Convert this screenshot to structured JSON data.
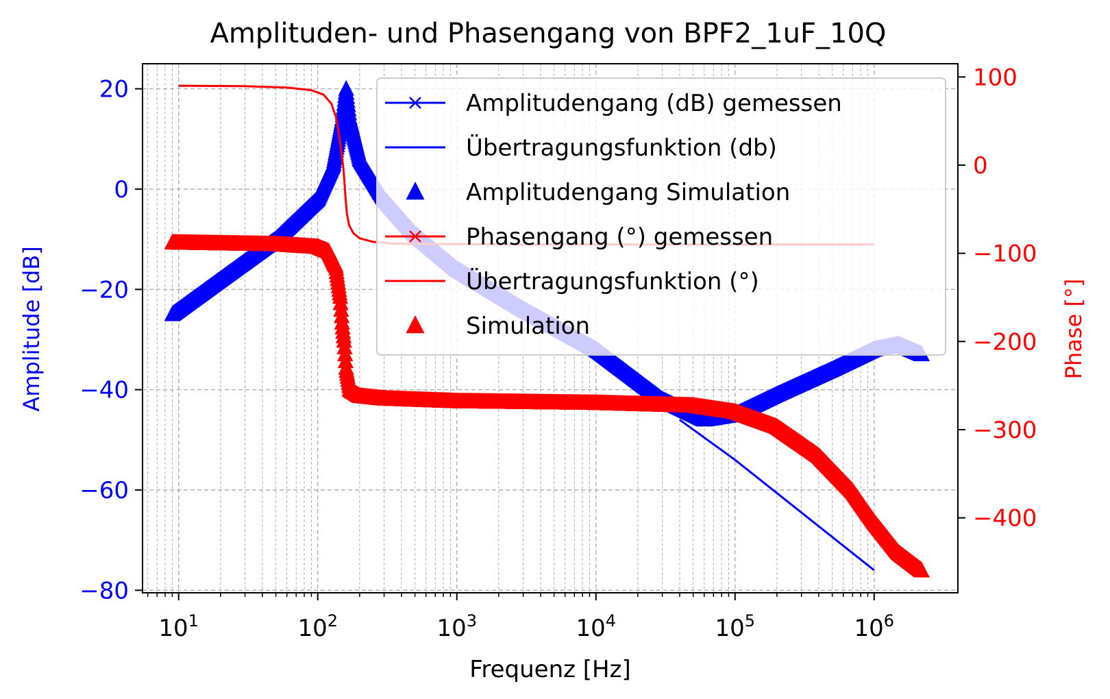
{
  "chart_data": {
    "type": "line",
    "title": "Amplituden- und Phasengang von BPF2_1uF_10Q",
    "xlabel": "Frequenz [Hz]",
    "ylabel_left": "Amplitude [dB]",
    "ylabel_right": "Phase [°]",
    "x_scale": "log",
    "xlim": [
      5.5,
      4000000
    ],
    "ylim_left": [
      -80.5,
      25
    ],
    "ylim_right": [
      -485,
      115
    ],
    "grid": true,
    "legend_position": "top-right",
    "colors": {
      "amplitude": "#0000ff",
      "phase": "#ff0000",
      "left_axis": "#0000ff",
      "right_axis": "#ff0000"
    },
    "x_ticks": [
      {
        "value": 10,
        "base": "10",
        "exp": "1"
      },
      {
        "value": 100,
        "base": "10",
        "exp": "2"
      },
      {
        "value": 1000,
        "base": "10",
        "exp": "3"
      },
      {
        "value": 10000,
        "base": "10",
        "exp": "4"
      },
      {
        "value": 100000,
        "base": "10",
        "exp": "5"
      },
      {
        "value": 1000000,
        "base": "10",
        "exp": "6"
      }
    ],
    "y_ticks_left": [
      {
        "value": 20,
        "label": "20"
      },
      {
        "value": 0,
        "label": "0"
      },
      {
        "value": -20,
        "label": "−20"
      },
      {
        "value": -40,
        "label": "−40"
      },
      {
        "value": -60,
        "label": "−60"
      },
      {
        "value": -80,
        "label": "−80"
      }
    ],
    "y_ticks_right": [
      {
        "value": 100,
        "label": "100"
      },
      {
        "value": 0,
        "label": "0"
      },
      {
        "value": -100,
        "label": "−100"
      },
      {
        "value": -200,
        "label": "−200"
      },
      {
        "value": -300,
        "label": "−300"
      },
      {
        "value": -400,
        "label": "−400"
      }
    ],
    "legend": [
      {
        "label": "Amplitudengang (dB) gemessen",
        "color": "#0000ff",
        "style": "line-x"
      },
      {
        "label": "Übertragungsfunktion (db)",
        "color": "#0000ff",
        "style": "line"
      },
      {
        "label": "Amplitudengang Simulation",
        "color": "#0000ff",
        "style": "triangle"
      },
      {
        "label": "Phasengang (°) gemessen",
        "color": "#ff0000",
        "style": "line-x"
      },
      {
        "label": "Übertragungsfunktion (°)",
        "color": "#ff0000",
        "style": "line"
      },
      {
        "label": "Simulation",
        "color": "#ff0000",
        "style": "triangle"
      }
    ],
    "series": [
      {
        "name": "Amplitudengang Simulation",
        "axis": "left",
        "color": "#0000ff",
        "marker": "triangle",
        "x": [
          9,
          20,
          50,
          100,
          130,
          150,
          160,
          170,
          200,
          300,
          500,
          1000,
          3000,
          10000,
          30000,
          60000,
          100000,
          200000,
          500000,
          1000000,
          1500000,
          2200000
        ],
        "y": [
          -25,
          -18,
          -10,
          -2,
          5,
          14,
          20,
          14,
          6,
          -2,
          -9,
          -16,
          -24,
          -32,
          -42,
          -46,
          -45,
          -41,
          -36,
          -32,
          -31,
          -33
        ]
      },
      {
        "name": "Übertragungsfunktion (db)",
        "axis": "left",
        "color": "#0000ff",
        "marker": "none",
        "x": [
          40000,
          100000,
          1000000
        ],
        "y": [
          -46,
          -54,
          -76
        ]
      },
      {
        "name": "Simulation",
        "axis": "right",
        "color": "#ff0000",
        "marker": "triangle",
        "x": [
          9,
          20,
          50,
          100,
          120,
          135,
          145,
          150,
          155,
          160,
          170,
          200,
          300,
          1000,
          10000,
          50000,
          100000,
          200000,
          400000,
          700000,
          1000000,
          1500000,
          2200000
        ],
        "y": [
          -88,
          -89,
          -90,
          -93,
          -98,
          -115,
          -150,
          -180,
          -200,
          -230,
          -255,
          -262,
          -265,
          -268,
          -270,
          -273,
          -280,
          -297,
          -330,
          -370,
          -405,
          -440,
          -460
        ]
      },
      {
        "name": "Übertragungsfunktion (°)",
        "axis": "right",
        "color": "#ff0000",
        "marker": "none",
        "x": [
          10,
          30,
          60,
          90,
          110,
          125,
          135,
          142,
          148,
          152,
          155,
          158,
          162,
          168,
          180,
          200,
          250,
          350,
          700,
          3000,
          100000,
          1000000
        ],
        "y": [
          90,
          89.5,
          88,
          85,
          80,
          70,
          55,
          35,
          15,
          0,
          -15,
          -35,
          -55,
          -68,
          -77,
          -83,
          -87,
          -89,
          -89.5,
          -90,
          -90,
          -90
        ]
      }
    ]
  }
}
